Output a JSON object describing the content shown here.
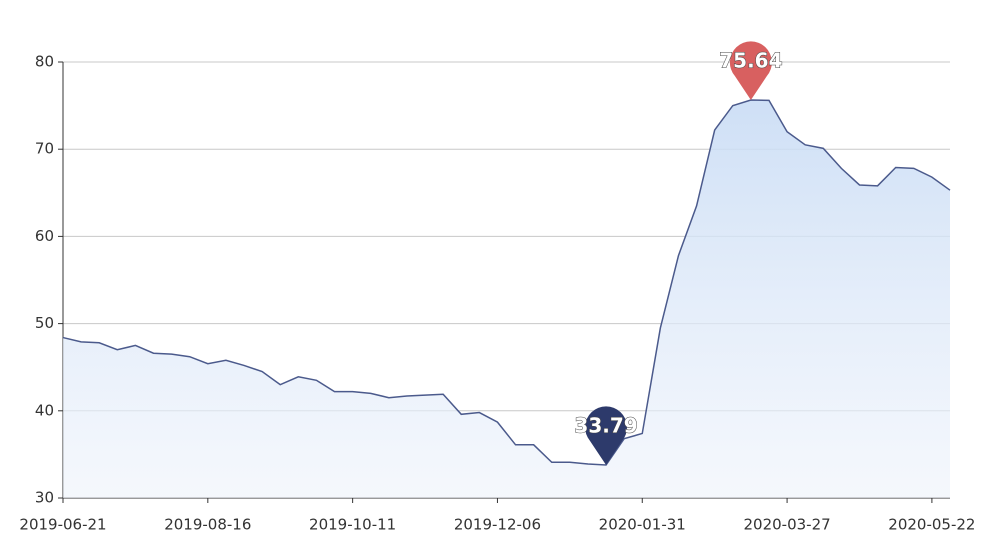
{
  "chart_data": {
    "type": "line",
    "categories": [
      "2019-06-21",
      null,
      null,
      null,
      null,
      null,
      null,
      null,
      "2019-08-16",
      null,
      null,
      null,
      null,
      null,
      null,
      null,
      "2019-10-11",
      null,
      null,
      null,
      null,
      null,
      null,
      null,
      "2019-12-06",
      null,
      null,
      null,
      null,
      null,
      null,
      null,
      "2020-01-31",
      null,
      null,
      null,
      null,
      null,
      null,
      null,
      "2020-03-27",
      null,
      null,
      null,
      null,
      null,
      null,
      null,
      "2020-05-22",
      null
    ],
    "series": [
      {
        "color": "#4b5a8c",
        "values": [
          48.4,
          47.9,
          47.8,
          47.0,
          47.5,
          46.6,
          46.5,
          46.2,
          45.4,
          45.8,
          45.2,
          44.5,
          43.0,
          43.9,
          43.5,
          42.2,
          42.2,
          42.0,
          41.5,
          41.7,
          41.8,
          41.9,
          39.6,
          39.8,
          38.7,
          36.1,
          36.1,
          34.1,
          34.1,
          33.9,
          33.79,
          36.8,
          37.4,
          49.5,
          57.8,
          63.5,
          72.2,
          75.0,
          75.64,
          75.6,
          72.0,
          70.5,
          70.1,
          67.8,
          65.9,
          65.8,
          67.9,
          67.8,
          66.8,
          65.3
        ]
      }
    ],
    "max_marker_color": "#d86060",
    "min_marker_color": "#2d3a6b",
    "ylim": [
      30,
      80
    ],
    "yticks": [
      30,
      40,
      50,
      60,
      70,
      80
    ],
    "grid": true
  }
}
